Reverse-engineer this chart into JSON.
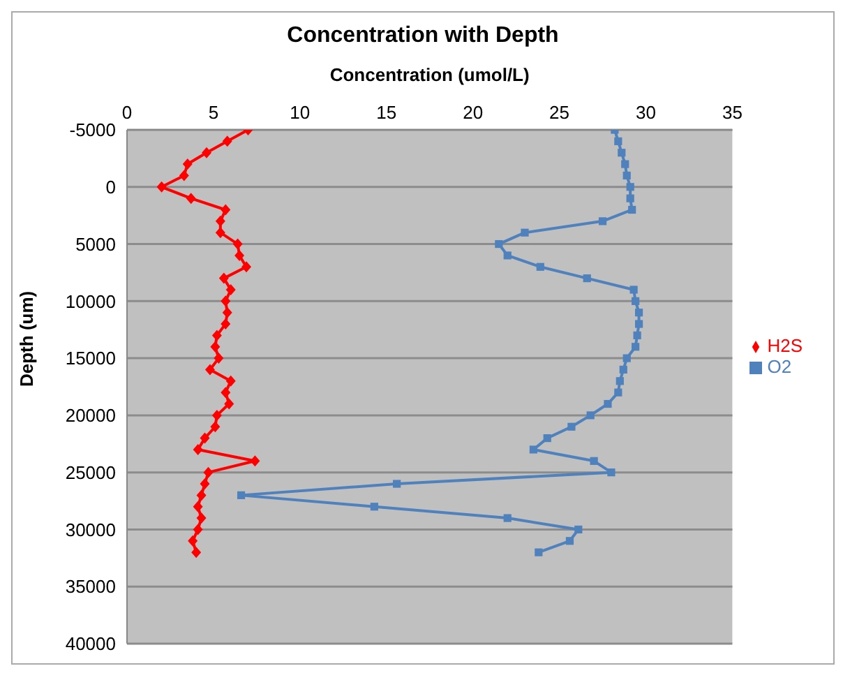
{
  "chart_data": {
    "type": "line",
    "title": "Concentration with Depth",
    "xlabel": "Concentration (umol/L)",
    "ylabel": "Depth (um)",
    "xlim": [
      0,
      35
    ],
    "xticks": [
      0,
      5,
      10,
      15,
      20,
      25,
      30,
      35
    ],
    "ylim": [
      40000,
      -5000
    ],
    "yticks": [
      -5000,
      0,
      5000,
      10000,
      15000,
      20000,
      25000,
      30000,
      35000,
      40000
    ],
    "grid": "y",
    "legend": "right",
    "series": [
      {
        "name": "H2S",
        "color": "#ff0000",
        "marker": "diamond",
        "x": [
          7.0,
          5.8,
          4.6,
          3.5,
          3.3,
          2.0,
          3.7,
          5.7,
          5.4,
          5.4,
          6.4,
          6.5,
          6.9,
          5.6,
          6.0,
          5.7,
          5.8,
          5.7,
          5.2,
          5.1,
          5.3,
          4.8,
          6.0,
          5.7,
          5.9,
          5.2,
          5.1,
          4.5,
          4.1,
          7.4,
          4.7,
          4.5,
          4.3,
          4.1,
          4.3,
          4.1,
          3.8,
          4.0
        ],
        "values": [
          -5000,
          -4000,
          -3000,
          -2000,
          -1000,
          0,
          1000,
          2000,
          3000,
          4000,
          5000,
          6000,
          7000,
          8000,
          9000,
          10000,
          11000,
          12000,
          13000,
          14000,
          15000,
          16000,
          17000,
          18000,
          19000,
          20000,
          21000,
          22000,
          23000,
          24000,
          25000,
          26000,
          27000,
          28000,
          29000,
          30000,
          31000,
          32000
        ]
      },
      {
        "name": "O2",
        "color": "#4f81bd",
        "marker": "square",
        "x": [
          28.2,
          28.4,
          28.6,
          28.8,
          28.9,
          29.1,
          29.1,
          29.2,
          27.5,
          23.0,
          21.5,
          22.0,
          23.9,
          26.6,
          29.3,
          29.4,
          29.6,
          29.6,
          29.5,
          29.4,
          28.9,
          28.7,
          28.5,
          28.4,
          27.8,
          26.8,
          25.7,
          24.3,
          23.5,
          27.0,
          28.0,
          15.6,
          6.6,
          14.3,
          22.0,
          26.1,
          25.6,
          23.8
        ],
        "values": [
          -5000,
          -4000,
          -3000,
          -2000,
          -1000,
          0,
          1000,
          2000,
          3000,
          4000,
          5000,
          6000,
          7000,
          8000,
          9000,
          10000,
          11000,
          12000,
          13000,
          14000,
          15000,
          16000,
          17000,
          18000,
          19000,
          20000,
          21000,
          22000,
          23000,
          24000,
          25000,
          26000,
          27000,
          28000,
          29000,
          30000,
          31000,
          32000
        ]
      }
    ]
  }
}
